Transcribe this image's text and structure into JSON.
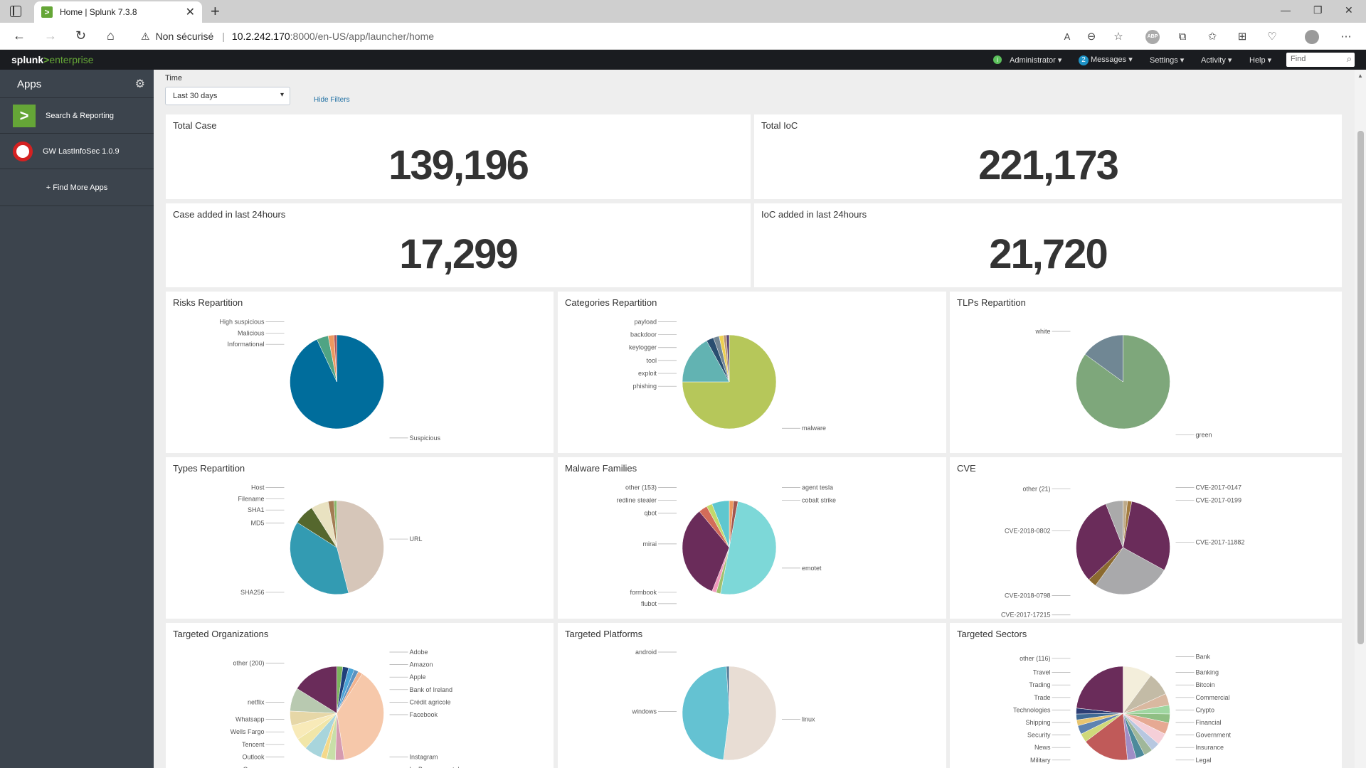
{
  "browser": {
    "tab_title": "Home | Splunk 7.3.8",
    "security_label": "Non sécurisé",
    "url_host": "10.2.242.170",
    "url_path": ":8000/en-US/app/launcher/home"
  },
  "splunk_bar": {
    "logo_main": "splunk",
    "logo_gt": ">",
    "logo_product": "enterprise",
    "administrator": "Administrator ▾",
    "messages_count": "2",
    "messages": "Messages ▾",
    "settings": "Settings ▾",
    "activity": "Activity ▾",
    "help": "Help ▾",
    "find_placeholder": "Find"
  },
  "sidebar": {
    "title": "Apps",
    "apps": [
      {
        "label": "Search & Reporting"
      },
      {
        "label": "GW LastInfoSec 1.0.9"
      }
    ],
    "find_more": "+ Find More Apps"
  },
  "filters": {
    "time_label": "Time",
    "time_value": "Last 30 days",
    "hide_filters": "Hide Filters"
  },
  "singles": [
    {
      "title": "Total Case",
      "value": "139,196"
    },
    {
      "title": "Total IoC",
      "value": "221,173"
    },
    {
      "title": "Case added in last 24hours",
      "value": "17,299"
    },
    {
      "title": "IoC added in last 24hours",
      "value": "21,720"
    }
  ],
  "colors": {
    "splunk_green": "#65a637",
    "splunk_dark": "#1a1c20",
    "sidebar": "#3c444d"
  },
  "chart_data": [
    {
      "type": "pie",
      "title": "Risks Repartition",
      "slices": [
        {
          "label": "Suspicious",
          "value": 93,
          "color": "#006d9c"
        },
        {
          "label": "Informational",
          "value": 4,
          "color": "#4fa484"
        },
        {
          "label": "Malicious",
          "value": 2,
          "color": "#ec9960"
        },
        {
          "label": "High suspicious",
          "value": 1,
          "color": "#af575a"
        }
      ],
      "labels": [
        {
          "text": "Suspicious",
          "side": "right",
          "ly": 0.92
        },
        {
          "text": "Informational",
          "side": "left",
          "ly": 0.34
        },
        {
          "text": "Malicious",
          "side": "left",
          "ly": 0.27
        },
        {
          "text": "High suspicious",
          "side": "left",
          "ly": 0.2
        }
      ]
    },
    {
      "type": "pie",
      "title": "Categories Repartition",
      "slices": [
        {
          "label": "malware",
          "value": 75,
          "color": "#b6c75a"
        },
        {
          "label": "phishing",
          "value": 17,
          "color": "#62b3b2"
        },
        {
          "label": "exploit",
          "value": 2.5,
          "color": "#294e70"
        },
        {
          "label": "tool",
          "value": 2,
          "color": "#738795"
        },
        {
          "label": "keylogger",
          "value": 1.5,
          "color": "#edd051"
        },
        {
          "label": "backdoor",
          "value": 1,
          "color": "#bd9872"
        },
        {
          "label": "payload",
          "value": 1,
          "color": "#5a4575"
        }
      ],
      "labels": [
        {
          "text": "malware",
          "side": "right",
          "ly": 0.86
        },
        {
          "text": "phishing",
          "side": "left",
          "ly": 0.6
        },
        {
          "text": "exploit",
          "side": "left",
          "ly": 0.52
        },
        {
          "text": "tool",
          "side": "left",
          "ly": 0.44
        },
        {
          "text": "keylogger",
          "side": "left",
          "ly": 0.36
        },
        {
          "text": "backdoor",
          "side": "left",
          "ly": 0.28
        },
        {
          "text": "payload",
          "side": "left",
          "ly": 0.2
        }
      ]
    },
    {
      "type": "pie",
      "title": "TLPs Repartition",
      "slices": [
        {
          "label": "green",
          "value": 85,
          "color": "#7ea77b"
        },
        {
          "label": "white",
          "value": 15,
          "color": "#708794"
        }
      ],
      "labels": [
        {
          "text": "green",
          "side": "right",
          "ly": 0.9
        },
        {
          "text": "white",
          "side": "left",
          "ly": 0.26
        }
      ]
    },
    {
      "type": "pie",
      "title": "Types Repartition",
      "slices": [
        {
          "label": "URL",
          "value": 46,
          "color": "#d6c6b9"
        },
        {
          "label": "SHA256",
          "value": 38,
          "color": "#339bb2"
        },
        {
          "label": "MD5",
          "value": 7,
          "color": "#55672d"
        },
        {
          "label": "SHA1",
          "value": 6,
          "color": "#e9e2c1"
        },
        {
          "label": "Filename",
          "value": 2,
          "color": "#a37c53"
        },
        {
          "label": "Host",
          "value": 1,
          "color": "#88b669"
        }
      ],
      "labels": [
        {
          "text": "URL",
          "side": "right",
          "ly": 0.52
        },
        {
          "text": "SHA256",
          "side": "left",
          "ly": 0.85
        },
        {
          "text": "MD5",
          "side": "left",
          "ly": 0.42
        },
        {
          "text": "SHA1",
          "side": "left",
          "ly": 0.34
        },
        {
          "text": "Filename",
          "side": "left",
          "ly": 0.27
        },
        {
          "text": "Host",
          "side": "left",
          "ly": 0.2
        }
      ]
    },
    {
      "type": "pie",
      "title": "Malware Families",
      "slices": [
        {
          "label": "agent tesla",
          "value": 1.5,
          "color": "#ec9960"
        },
        {
          "label": "cobalt strike",
          "value": 1.5,
          "color": "#a1574f"
        },
        {
          "label": "emotet",
          "value": 50,
          "color": "#7dd8d8"
        },
        {
          "label": "flubot",
          "value": 1.5,
          "color": "#a0c06e"
        },
        {
          "label": "formbook",
          "value": 1.5,
          "color": "#f09abc"
        },
        {
          "label": "mirai",
          "value": 33,
          "color": "#6a2c5a"
        },
        {
          "label": "qbot",
          "value": 3,
          "color": "#d36c59"
        },
        {
          "label": "redline stealer",
          "value": 2,
          "color": "#c3d86a"
        },
        {
          "label": "other (153)",
          "value": 6,
          "color": "#5fc7cf"
        }
      ],
      "labels": [
        {
          "text": "agent tesla",
          "side": "right",
          "ly": 0.2
        },
        {
          "text": "cobalt strike",
          "side": "right",
          "ly": 0.28
        },
        {
          "text": "emotet",
          "side": "right",
          "ly": 0.7
        },
        {
          "text": "flubot",
          "side": "left",
          "ly": 0.92
        },
        {
          "text": "formbook",
          "side": "left",
          "ly": 0.85
        },
        {
          "text": "mirai",
          "side": "left",
          "ly": 0.55
        },
        {
          "text": "qbot",
          "side": "left",
          "ly": 0.36
        },
        {
          "text": "redline stealer",
          "side": "left",
          "ly": 0.28
        },
        {
          "text": "other (153)",
          "side": "left",
          "ly": 0.2
        }
      ]
    },
    {
      "type": "pie",
      "title": "CVE",
      "slices": [
        {
          "label": "CVE-2017-0147",
          "value": 1.5,
          "color": "#bdaa8a"
        },
        {
          "label": "CVE-2017-0199",
          "value": 1.5,
          "color": "#a37c3f"
        },
        {
          "label": "CVE-2017-11882",
          "value": 30,
          "color": "#6a2c5a"
        },
        {
          "label": "CVE-2017-17215",
          "value": 27,
          "color": "#a9a9ab"
        },
        {
          "label": "CVE-2018-0798",
          "value": 3,
          "color": "#8b6a2f"
        },
        {
          "label": "CVE-2018-0802",
          "value": 31,
          "color": "#6a2c5a"
        },
        {
          "label": "other (21)",
          "value": 6,
          "color": "#aaaaaa"
        }
      ],
      "labels": [
        {
          "text": "CVE-2017-0147",
          "side": "right",
          "ly": 0.2
        },
        {
          "text": "CVE-2017-0199",
          "side": "right",
          "ly": 0.28
        },
        {
          "text": "CVE-2017-11882",
          "side": "right",
          "ly": 0.54
        },
        {
          "text": "CVE-2017-17215",
          "side": "left",
          "ly": 0.99
        },
        {
          "text": "CVE-2018-0798",
          "side": "left",
          "ly": 0.87
        },
        {
          "text": "CVE-2018-0802",
          "side": "left",
          "ly": 0.47
        },
        {
          "text": "other (21)",
          "side": "left",
          "ly": 0.21
        }
      ]
    },
    {
      "type": "pie",
      "title": "Targeted Organizations",
      "slices": [
        {
          "label": "Adobe",
          "value": 2,
          "color": "#7ab55c"
        },
        {
          "label": "Amazon",
          "value": 2,
          "color": "#1f3f7a"
        },
        {
          "label": "Apple",
          "value": 2,
          "color": "#4aa3d6"
        },
        {
          "label": "Bank of Ireland",
          "value": 1.5,
          "color": "#5d92c0"
        },
        {
          "label": "Crédit agricole",
          "value": 1.5,
          "color": "#f2b38f"
        },
        {
          "label": "Facebook",
          "value": 38,
          "color": "#f6c8aa"
        },
        {
          "label": "Instagram",
          "value": 3,
          "color": "#d69bb0"
        },
        {
          "label": "La Banque postale",
          "value": 3,
          "color": "#c8dfa8"
        },
        {
          "label": "Orange",
          "value": 2,
          "color": "#f4d98a"
        },
        {
          "label": "Outlook",
          "value": 6,
          "color": "#a8d5dc"
        },
        {
          "label": "Tencent",
          "value": 4,
          "color": "#f1e6a8"
        },
        {
          "label": "Wells Fargo",
          "value": 5,
          "color": "#f8eab8"
        },
        {
          "label": "Whatsapp",
          "value": 5,
          "color": "#e6d7a7"
        },
        {
          "label": "netflix",
          "value": 8,
          "color": "#b8c9b0"
        },
        {
          "label": "other (200)",
          "value": 16,
          "color": "#6a2c5a"
        }
      ],
      "labels": [
        {
          "text": "Adobe",
          "side": "right",
          "ly": 0.2
        },
        {
          "text": "Amazon",
          "side": "right",
          "ly": 0.28
        },
        {
          "text": "Apple",
          "side": "right",
          "ly": 0.36
        },
        {
          "text": "Bank of Ireland",
          "side": "right",
          "ly": 0.44
        },
        {
          "text": "Crédit agricole",
          "side": "right",
          "ly": 0.52
        },
        {
          "text": "Facebook",
          "side": "right",
          "ly": 0.6
        },
        {
          "text": "Instagram",
          "side": "right",
          "ly": 0.87
        },
        {
          "text": "La Banque postale",
          "side": "right",
          "ly": 0.95
        },
        {
          "text": "Orange",
          "side": "left",
          "ly": 0.95
        },
        {
          "text": "Outlook",
          "side": "left",
          "ly": 0.87
        },
        {
          "text": "Tencent",
          "side": "left",
          "ly": 0.79
        },
        {
          "text": "Wells Fargo",
          "side": "left",
          "ly": 0.71
        },
        {
          "text": "Whatsapp",
          "side": "left",
          "ly": 0.63
        },
        {
          "text": "netflix",
          "side": "left",
          "ly": 0.52
        },
        {
          "text": "other (200)",
          "side": "left",
          "ly": 0.27
        }
      ]
    },
    {
      "type": "pie",
      "title": "Targeted Platforms",
      "slices": [
        {
          "label": "linux",
          "value": 52,
          "color": "#e8ddd4"
        },
        {
          "label": "windows",
          "value": 47,
          "color": "#64c2d2"
        },
        {
          "label": "android",
          "value": 1,
          "color": "#5a7f9a"
        }
      ],
      "labels": [
        {
          "text": "linux",
          "side": "right",
          "ly": 0.63
        },
        {
          "text": "windows",
          "side": "left",
          "ly": 0.58
        },
        {
          "text": "android",
          "side": "left",
          "ly": 0.2
        }
      ]
    },
    {
      "type": "pie",
      "title": "Targeted Sectors",
      "slices": [
        {
          "label": "Bank",
          "value": 10,
          "color": "#f3eedb"
        },
        {
          "label": "Banking",
          "value": 8,
          "color": "#c3bba6"
        },
        {
          "label": "Bitcoin",
          "value": 4,
          "color": "#d9b8a0"
        },
        {
          "label": "Commercial",
          "value": 3,
          "color": "#9fd6a0"
        },
        {
          "label": "Crypto",
          "value": 3,
          "color": "#8fbf83"
        },
        {
          "label": "Financial",
          "value": 4,
          "color": "#e6a993"
        },
        {
          "label": "Government",
          "value": 4,
          "color": "#f5cfd8"
        },
        {
          "label": "Insurance",
          "value": 3,
          "color": "#b7c7e0"
        },
        {
          "label": "Legal",
          "value": 3,
          "color": "#a0b79a"
        },
        {
          "label": "Military",
          "value": 3,
          "color": "#4c8a9b"
        },
        {
          "label": "News",
          "value": 3,
          "color": "#9f8ec6"
        },
        {
          "label": "Security",
          "value": 16,
          "color": "#c05a59"
        },
        {
          "label": "Shipping",
          "value": 3,
          "color": "#cfd97a"
        },
        {
          "label": "Technologies",
          "value": 3,
          "color": "#5d83b0"
        },
        {
          "label": "Trade",
          "value": 2,
          "color": "#e7c570"
        },
        {
          "label": "Trading",
          "value": 2,
          "color": "#3f6a95"
        },
        {
          "label": "Travel",
          "value": 2,
          "color": "#2c3e75"
        },
        {
          "label": "other (116)",
          "value": 23,
          "color": "#6a2c5a"
        }
      ],
      "labels": [
        {
          "text": "Bank",
          "side": "right",
          "ly": 0.23
        },
        {
          "text": "Banking",
          "side": "right",
          "ly": 0.33
        },
        {
          "text": "Bitcoin",
          "side": "right",
          "ly": 0.41
        },
        {
          "text": "Commercial",
          "side": "right",
          "ly": 0.49
        },
        {
          "text": "Crypto",
          "side": "right",
          "ly": 0.57
        },
        {
          "text": "Financial",
          "side": "right",
          "ly": 0.65
        },
        {
          "text": "Government",
          "side": "right",
          "ly": 0.73
        },
        {
          "text": "Insurance",
          "side": "right",
          "ly": 0.81
        },
        {
          "text": "Legal",
          "side": "right",
          "ly": 0.89
        },
        {
          "text": "Military",
          "side": "left",
          "ly": 0.89
        },
        {
          "text": "News",
          "side": "left",
          "ly": 0.81
        },
        {
          "text": "Security",
          "side": "left",
          "ly": 0.73
        },
        {
          "text": "Shipping",
          "side": "left",
          "ly": 0.65
        },
        {
          "text": "Technologies",
          "side": "left",
          "ly": 0.57
        },
        {
          "text": "Trade",
          "side": "left",
          "ly": 0.49
        },
        {
          "text": "Trading",
          "side": "left",
          "ly": 0.41
        },
        {
          "text": "Travel",
          "side": "left",
          "ly": 0.33
        },
        {
          "text": "other (116)",
          "side": "left",
          "ly": 0.24
        }
      ]
    }
  ]
}
